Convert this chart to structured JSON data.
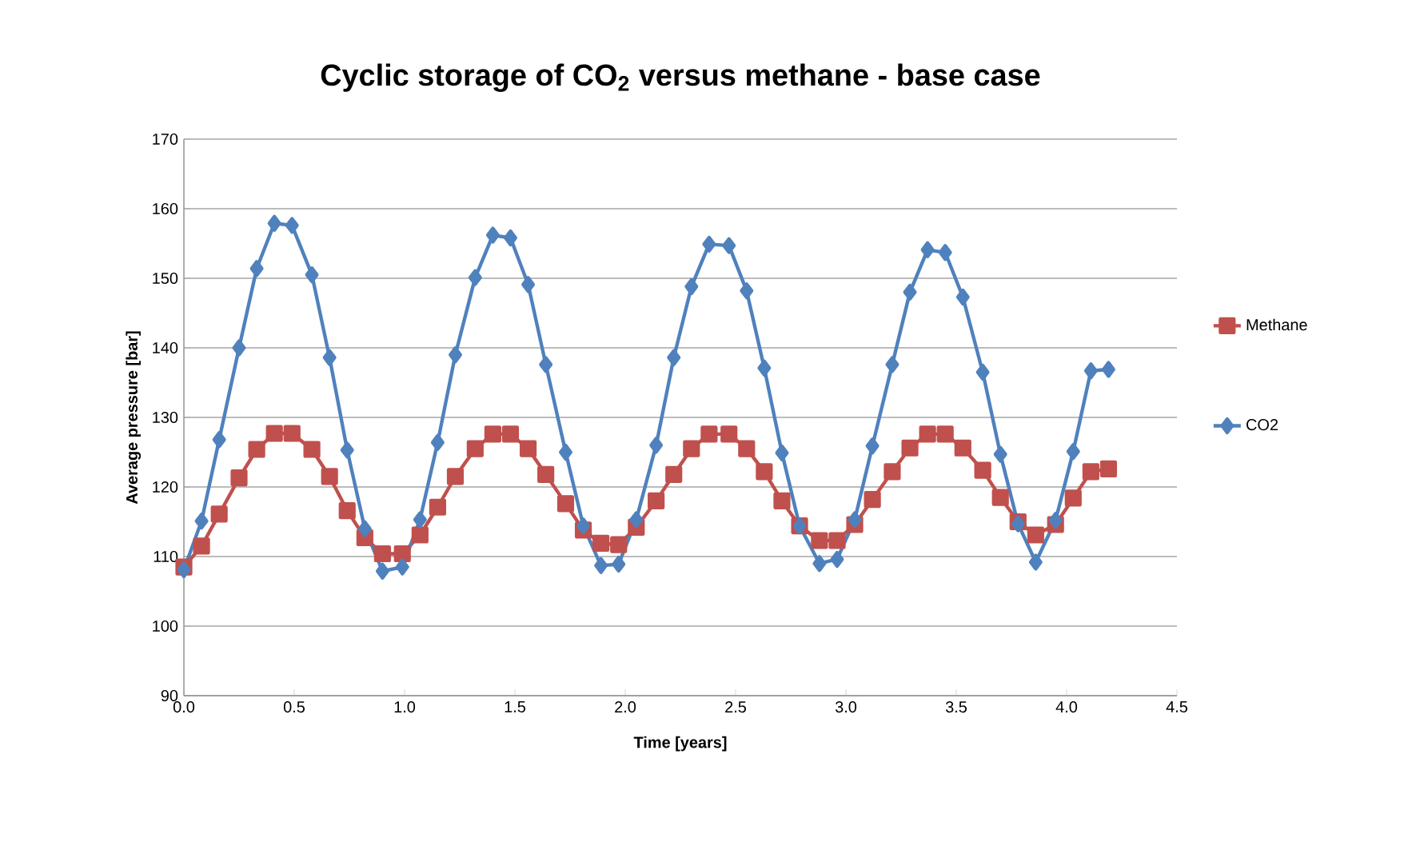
{
  "chart_data": {
    "type": "line",
    "title": "Cyclic storage of CO$_{2}$ versus methane - base case",
    "xlabel": "Time [years]",
    "ylabel": "Average pressure [bar]",
    "x": [
      0,
      0.08,
      0.16,
      0.25,
      0.33,
      0.41,
      0.49,
      0.58,
      0.66,
      0.74,
      0.82,
      0.9,
      0.99,
      1.07,
      1.15,
      1.23,
      1.32,
      1.4,
      1.48,
      1.56,
      1.64,
      1.73,
      1.81,
      1.89,
      1.97,
      2.05,
      2.14,
      2.22,
      2.3,
      2.38,
      2.47,
      2.55,
      2.63,
      2.71,
      2.79,
      2.88,
      2.96,
      3.04,
      3.12,
      3.21,
      3.29,
      3.37,
      3.45,
      3.53,
      3.62,
      3.7,
      3.78,
      3.86,
      3.95,
      4.03,
      4.11,
      4.19
    ],
    "series": [
      {
        "name": "Methane",
        "color": "#c0504d",
        "marker": "square",
        "values": [
          108.5,
          111.5,
          116.1,
          121.3,
          125.4,
          127.7,
          127.7,
          125.4,
          121.5,
          116.6,
          112.7,
          110.4,
          110.4,
          113.1,
          117.1,
          121.5,
          125.5,
          127.6,
          127.6,
          125.5,
          121.8,
          117.6,
          113.8,
          111.9,
          111.7,
          114.2,
          118.0,
          121.8,
          125.5,
          127.6,
          127.6,
          125.5,
          122.2,
          118.0,
          114.4,
          112.3,
          112.3,
          114.6,
          118.2,
          122.2,
          125.6,
          127.6,
          127.6,
          125.6,
          122.4,
          118.5,
          115.0,
          113.1,
          114.6,
          118.4,
          122.2,
          122.6
        ]
      },
      {
        "name": "CO2",
        "color": "#4f81bd",
        "marker": "diamond",
        "values": [
          108.1,
          115.1,
          126.8,
          140.0,
          151.4,
          157.9,
          157.6,
          150.5,
          138.6,
          125.3,
          114.0,
          107.9,
          108.5,
          115.3,
          126.4,
          139.0,
          150.1,
          156.2,
          155.8,
          149.1,
          137.6,
          125.0,
          114.4,
          108.7,
          108.9,
          115.3,
          126.0,
          138.6,
          148.8,
          154.9,
          154.7,
          148.2,
          137.1,
          124.9,
          114.4,
          109.0,
          109.6,
          115.3,
          125.9,
          137.6,
          148.0,
          154.1,
          153.7,
          147.3,
          136.5,
          124.7,
          114.7,
          109.2,
          115.2,
          125.1,
          136.7,
          136.9
        ]
      }
    ],
    "xlim": [
      0,
      4.5
    ],
    "xticks": [
      {
        "value": 0,
        "label": "0.0"
      },
      {
        "value": 0.5,
        "label": "0.5"
      },
      {
        "value": 1,
        "label": "1.0"
      },
      {
        "value": 1.5,
        "label": "1.5"
      },
      {
        "value": 2,
        "label": "2.0"
      },
      {
        "value": 2.5,
        "label": "2.5"
      },
      {
        "value": 3,
        "label": "3.0"
      },
      {
        "value": 3.5,
        "label": "3.5"
      },
      {
        "value": 4,
        "label": "4.0"
      },
      {
        "value": 4.5,
        "label": "4.5"
      }
    ],
    "ylim": [
      90,
      170
    ],
    "yticks": [
      90,
      100,
      110,
      120,
      130,
      140,
      150,
      160,
      170
    ],
    "grid": "y",
    "legend": "right",
    "line_style": "solid"
  }
}
